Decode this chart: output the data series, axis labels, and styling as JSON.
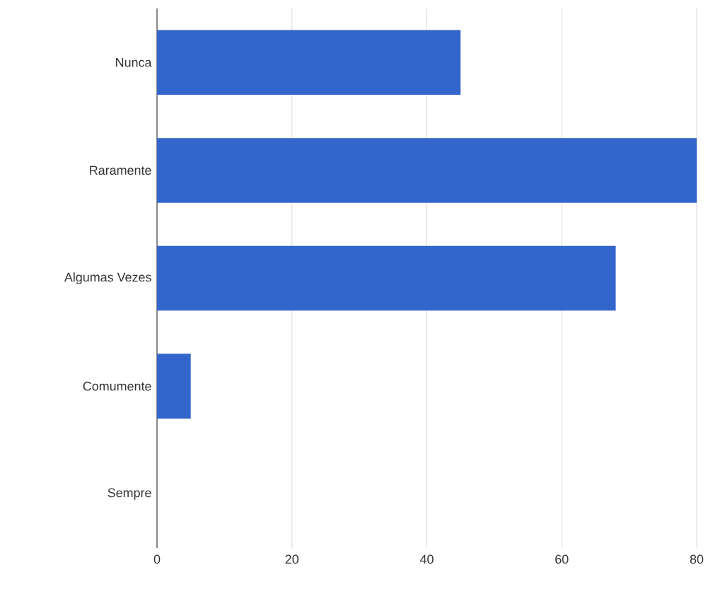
{
  "chart_data": {
    "type": "bar",
    "orientation": "horizontal",
    "categories": [
      "Nunca",
      "Raramente",
      "Algumas Vezes",
      "Comumente",
      "Sempre"
    ],
    "values": [
      45,
      80,
      68,
      5,
      0
    ],
    "color": "#3366cc",
    "xlim": [
      0,
      80
    ],
    "xticks": [
      0,
      20,
      40,
      60,
      80
    ],
    "grid": "x"
  }
}
